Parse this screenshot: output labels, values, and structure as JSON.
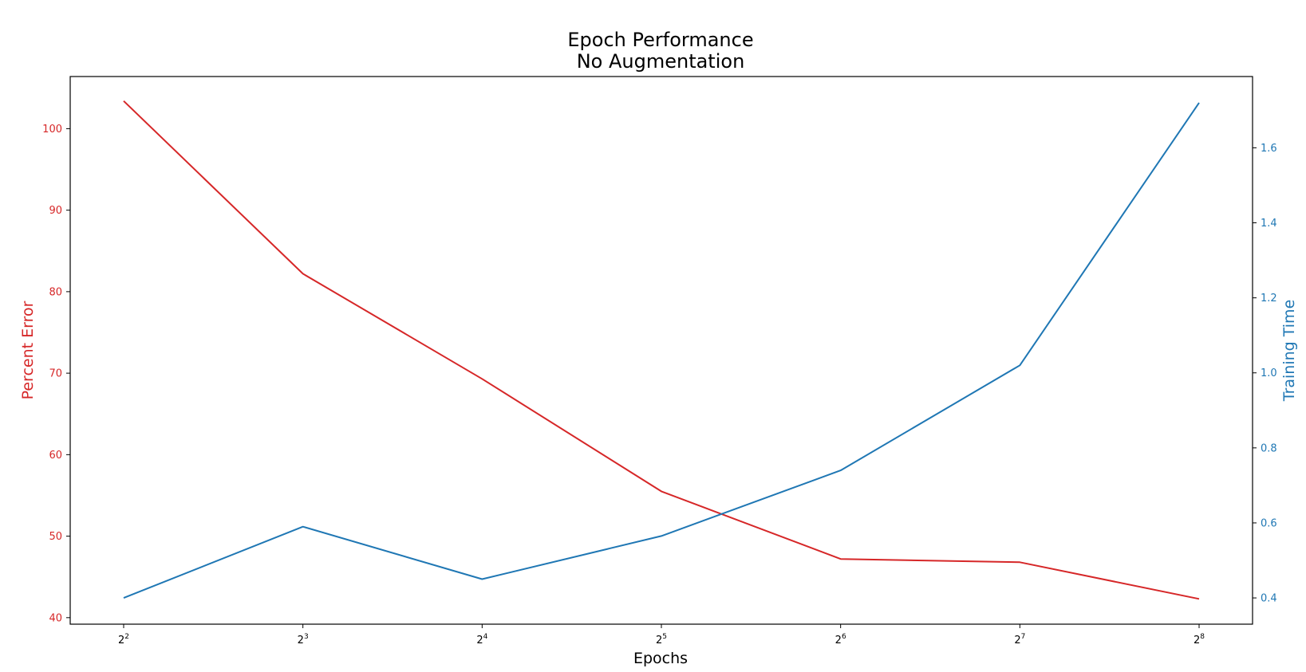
{
  "chart_data": {
    "type": "line",
    "title_line1": "Epoch Performance",
    "title_line2": "No Augmentation",
    "xlabel": "Epochs",
    "ylabel_left": "Percent Error",
    "ylabel_right": "Training Time",
    "x_scale": "log2",
    "x": [
      4,
      8,
      16,
      32,
      64,
      128,
      256
    ],
    "x_tick_labels": [
      {
        "base": "2",
        "exp": "2"
      },
      {
        "base": "2",
        "exp": "3"
      },
      {
        "base": "2",
        "exp": "4"
      },
      {
        "base": "2",
        "exp": "5"
      },
      {
        "base": "2",
        "exp": "6"
      },
      {
        "base": "2",
        "exp": "7"
      },
      {
        "base": "2",
        "exp": "8"
      }
    ],
    "y_left_lim": [
      39.2,
      106.4
    ],
    "y_left_ticks": [
      40,
      50,
      60,
      70,
      80,
      90,
      100
    ],
    "y_right_lim": [
      0.33,
      1.79
    ],
    "y_right_ticks": [
      0.4,
      0.6,
      0.8,
      1.0,
      1.2,
      1.4,
      1.6
    ],
    "series": [
      {
        "name": "Percent Error",
        "axis": "left",
        "color": "#d62728",
        "values": [
          103.4,
          82.2,
          69.3,
          55.5,
          47.2,
          46.8,
          42.3
        ]
      },
      {
        "name": "Training Time",
        "axis": "right",
        "color": "#1f77b4",
        "values": [
          0.4,
          0.59,
          0.45,
          0.565,
          0.74,
          1.02,
          1.72
        ]
      }
    ],
    "grid": false,
    "legend": "none"
  }
}
